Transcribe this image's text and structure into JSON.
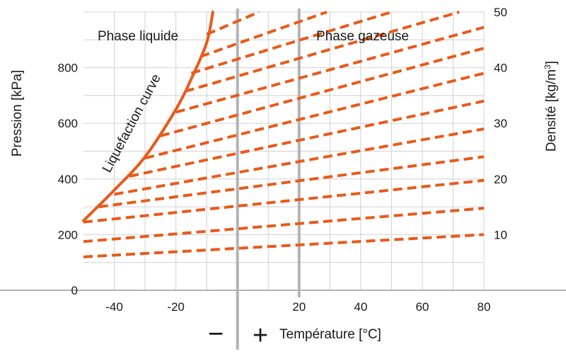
{
  "chart_data": {
    "type": "line",
    "xlabel": "Température [°C]",
    "ylabel_left": "Pression [kPa]",
    "ylabel_right_main": "Densité [kg/m",
    "ylabel_right_sup": "3",
    "ylabel_right_close": "]",
    "xlim": [
      -50,
      80
    ],
    "ylim_left": [
      0,
      1000
    ],
    "ylim_right": [
      0,
      50
    ],
    "x_ticks": [
      "-40",
      "-20",
      "20",
      "40",
      "60",
      "80"
    ],
    "x_tick_values": [
      -40,
      -20,
      20,
      40,
      60,
      80
    ],
    "y_left_ticks": [
      "0",
      "200",
      "400",
      "600",
      "800"
    ],
    "y_left_tick_values": [
      0,
      200,
      400,
      600,
      800
    ],
    "y_right_ticks": [
      "10",
      "20",
      "30",
      "40",
      "50"
    ],
    "y_right_tick_values": [
      10,
      20,
      30,
      40,
      50
    ],
    "minus_sign": "−",
    "plus_sign": "+",
    "regions": [
      {
        "label": "Phase liquide",
        "x": -43,
        "y": 905
      },
      {
        "label": "Phase gazeuse",
        "x": 20,
        "y": 905
      }
    ],
    "liquefaction_curve": {
      "label": "Liquefaction curve",
      "color": "#e85a1a",
      "x": [
        -50,
        -40,
        -30,
        -20,
        -15,
        -10,
        -8
      ],
      "y": [
        250,
        360,
        480,
        650,
        760,
        890,
        1000
      ]
    },
    "density_lines": {
      "color": "#e85a1a",
      "style": "dashed",
      "lines": [
        {
          "x": [
            -50,
            80
          ],
          "y": [
            120,
            200
          ]
        },
        {
          "x": [
            -50,
            80
          ],
          "y": [
            175,
            295
          ]
        },
        {
          "x": [
            -50,
            80
          ],
          "y": [
            245,
            395
          ]
        },
        {
          "x": [
            -45,
            80
          ],
          "y": [
            300,
            480
          ]
        },
        {
          "x": [
            -40,
            80
          ],
          "y": [
            345,
            580
          ]
        },
        {
          "x": [
            -35,
            80
          ],
          "y": [
            410,
            680
          ]
        },
        {
          "x": [
            -30,
            80
          ],
          "y": [
            475,
            780
          ]
        },
        {
          "x": [
            -25,
            80
          ],
          "y": [
            555,
            870
          ]
        },
        {
          "x": [
            -20,
            80
          ],
          "y": [
            640,
            945
          ]
        },
        {
          "x": [
            -17,
            72
          ],
          "y": [
            715,
            1000
          ]
        },
        {
          "x": [
            -15,
            50
          ],
          "y": [
            780,
            1000
          ]
        },
        {
          "x": [
            -12,
            29
          ],
          "y": [
            840,
            1000
          ]
        },
        {
          "x": [
            -10,
            7
          ],
          "y": [
            920,
            1000
          ]
        }
      ]
    },
    "reference_lines": {
      "color": "#b3b3b3",
      "x": [
        0,
        20
      ]
    },
    "grid": true
  }
}
